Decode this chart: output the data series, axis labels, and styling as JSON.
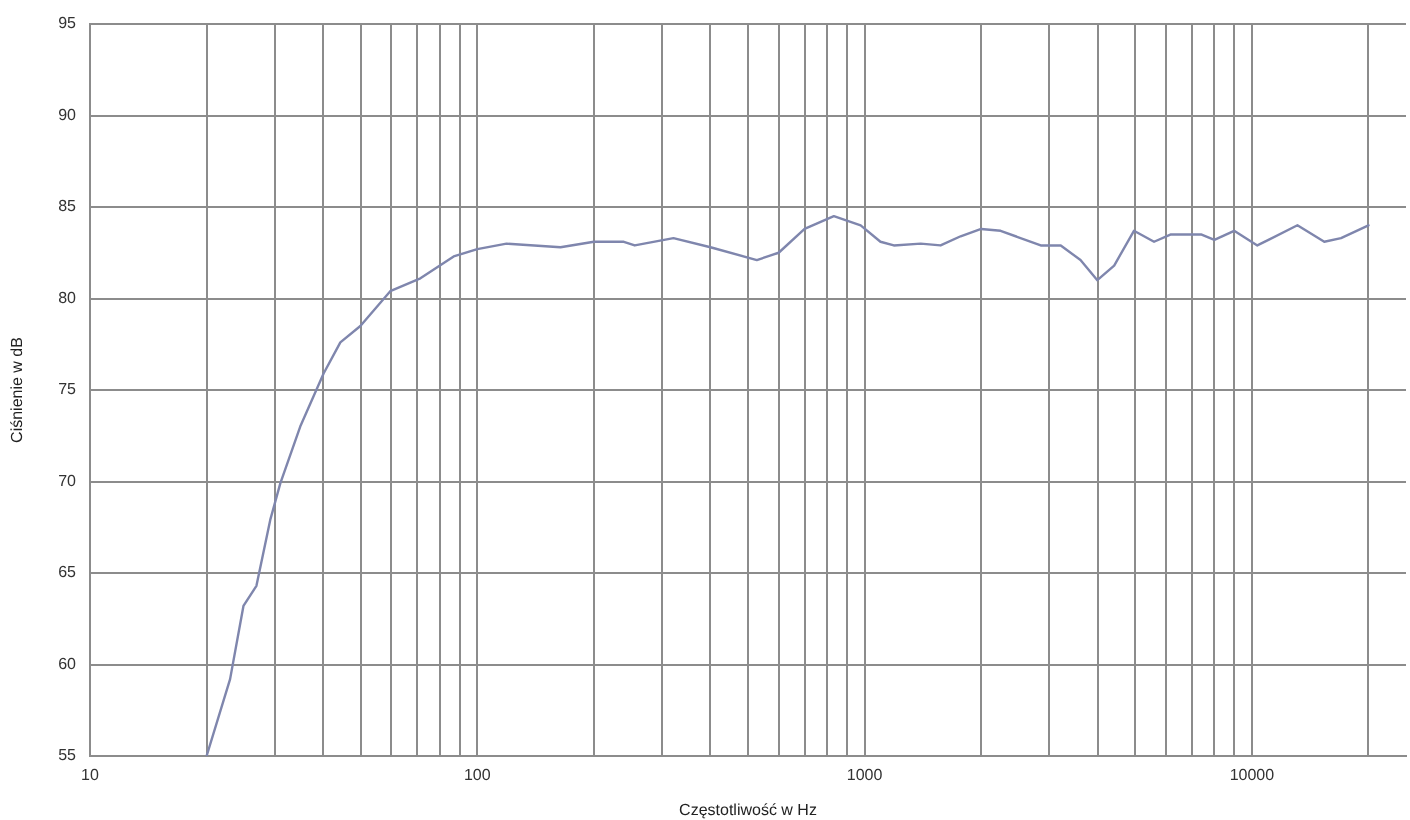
{
  "chart_data": {
    "type": "line",
    "xlabel": "Częstotliwość w Hz",
    "ylabel": "Ciśnienie w dB",
    "x": [
      20,
      23,
      24.9,
      26.9,
      29.2,
      31,
      34.9,
      40.1,
      44.3,
      49.9,
      59.6,
      71.3,
      86.9,
      100,
      119,
      164,
      200,
      239,
      255,
      321,
      400,
      527,
      600,
      700,
      833,
      977,
      1099,
      1190,
      1396,
      1571,
      1770,
      2000,
      2245,
      2850,
      3210,
      3610,
      3990,
      4410,
      4960,
      5590,
      6180,
      7390,
      8000,
      9000,
      10330,
      13110,
      15380,
      16990,
      20000
    ],
    "values": [
      55,
      59.2,
      63.2,
      64.3,
      67.9,
      69.9,
      73.0,
      75.9,
      77.6,
      78.5,
      80.4,
      81.1,
      82.3,
      82.7,
      83.0,
      82.8,
      83.1,
      83.1,
      82.9,
      83.3,
      82.8,
      82.1,
      82.5,
      83.8,
      84.5,
      84.0,
      83.1,
      82.9,
      83.0,
      82.9,
      83.4,
      83.8,
      83.7,
      82.9,
      82.9,
      82.1,
      81.0,
      81.8,
      83.7,
      83.1,
      83.5,
      83.5,
      83.2,
      83.7,
      82.9,
      84.0,
      83.1,
      83.3,
      84.0
    ],
    "color": "#7f86ad",
    "xlim": [
      10,
      25000
    ],
    "xticks": [
      10,
      {
        "value": 20,
        "label": null
      },
      {
        "value": 30,
        "label": null
      },
      {
        "value": 40,
        "label": null
      },
      {
        "value": 50,
        "label": null
      },
      {
        "value": 60,
        "label": null
      },
      {
        "value": 70,
        "label": null
      },
      {
        "value": 80,
        "label": null
      },
      {
        "value": 90,
        "label": null
      },
      100,
      {
        "value": 200,
        "label": null
      },
      {
        "value": 300,
        "label": null
      },
      {
        "value": 400,
        "label": null
      },
      {
        "value": 500,
        "label": null
      },
      {
        "value": 600,
        "label": null
      },
      {
        "value": 700,
        "label": null
      },
      {
        "value": 800,
        "label": null
      },
      {
        "value": 900,
        "label": null
      },
      1000,
      {
        "value": 2000,
        "label": null
      },
      {
        "value": 3000,
        "label": null
      },
      {
        "value": 4000,
        "label": null
      },
      {
        "value": 5000,
        "label": null
      },
      {
        "value": 6000,
        "label": null
      },
      {
        "value": 7000,
        "label": null
      },
      {
        "value": 8000,
        "label": null
      },
      {
        "value": 9000,
        "label": null
      },
      10000,
      {
        "value": 20000,
        "label": null
      }
    ],
    "ylim": [
      55,
      95
    ],
    "yticks": [
      55,
      60,
      65,
      70,
      75,
      80,
      85,
      90,
      95
    ],
    "log": "x",
    "grid": true,
    "legend": false,
    "marker": "none",
    "line_style": "solid"
  }
}
